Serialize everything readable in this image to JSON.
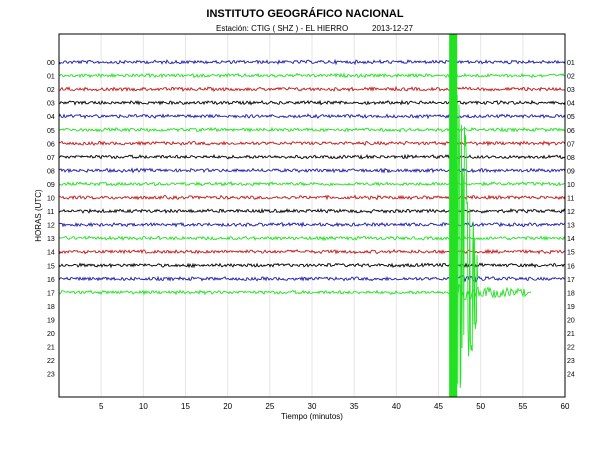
{
  "header": {
    "title": "INSTITUTO GEOGRÁFICO NACIONAL",
    "station": "Estación:  CTIG ( SHZ ) - EL HIERRO",
    "date": "2013-12-27"
  },
  "chart_data": {
    "type": "line",
    "title": "INSTITUTO GEOGRÁFICO NACIONAL",
    "xlabel": "Tiempo (minutos)",
    "ylabel": "HORAS (UTC)",
    "xlim": [
      0,
      60
    ],
    "x_ticks": [
      5,
      10,
      15,
      20,
      25,
      30,
      35,
      40,
      45,
      50,
      55,
      60
    ],
    "grid": true,
    "left_hour_labels": [
      "00",
      "01",
      "02",
      "03",
      "04",
      "05",
      "06",
      "07",
      "08",
      "09",
      "10",
      "11",
      "12",
      "13",
      "14",
      "15",
      "16",
      "17",
      "18",
      "19",
      "20",
      "21",
      "22",
      "23"
    ],
    "right_hour_labels": [
      "01",
      "02",
      "03",
      "04",
      "05",
      "06",
      "07",
      "08",
      "09",
      "10",
      "11",
      "12",
      "13",
      "14",
      "15",
      "16",
      "17",
      "18",
      "19",
      "20",
      "21",
      "22",
      "23",
      "24"
    ],
    "trace_color_cycle": [
      "#1a1aa8",
      "#22e022",
      "#c01818",
      "#000000"
    ],
    "traces_recorded_hours": 18,
    "last_trace_end_minute": 56,
    "event": {
      "start_minute": 46.5,
      "color": "#22e022",
      "coda_end_minute": 55.5
    }
  }
}
